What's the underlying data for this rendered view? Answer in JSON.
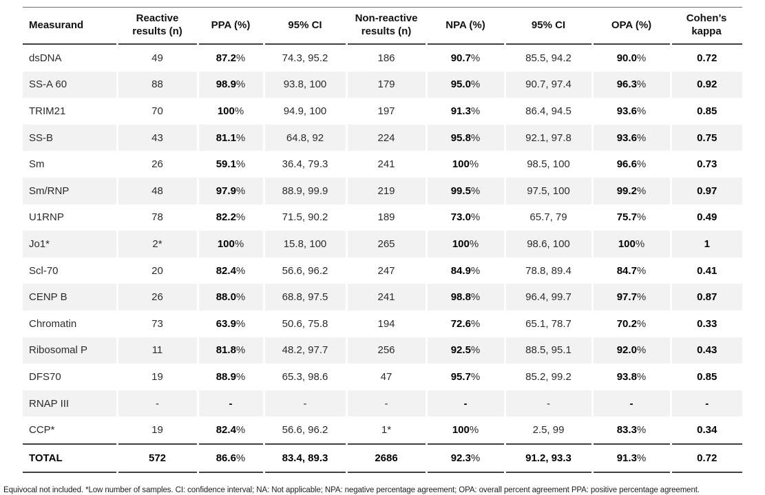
{
  "table": {
    "columns": [
      "Measurand",
      "Reactive results (n)",
      "PPA (%)",
      "95% CI",
      "Non-reactive results (n)",
      "NPA (%)",
      "95% CI",
      "OPA (%)",
      "Cohen’s kappa"
    ],
    "rows": [
      [
        "dsDNA",
        "49",
        "87.2%",
        "74.3, 95.2",
        "186",
        "90.7%",
        "85.5, 94.2",
        "90.0%",
        "0.72"
      ],
      [
        "SS-A 60",
        "88",
        "98.9%",
        "93.8, 100",
        "179",
        "95.0%",
        "90.7, 97.4",
        "96.3%",
        "0.92"
      ],
      [
        "TRIM21",
        "70",
        "100%",
        "94.9, 100",
        "197",
        "91.3%",
        "86.4, 94.5",
        "93.6%",
        "0.85"
      ],
      [
        "SS-B",
        "43",
        "81.1%",
        "64.8, 92",
        "224",
        "95.8%",
        "92.1, 97.8",
        "93.6%",
        "0.75"
      ],
      [
        "Sm",
        "26",
        "59.1%",
        "36.4, 79.3",
        "241",
        "100%",
        "98.5, 100",
        "96.6%",
        "0.73"
      ],
      [
        "Sm/RNP",
        "48",
        "97.9%",
        "88.9, 99.9",
        "219",
        "99.5%",
        "97.5, 100",
        "99.2%",
        "0.97"
      ],
      [
        "U1RNP",
        "78",
        "82.2%",
        "71.5, 90.2",
        "189",
        "73.0%",
        "65.7, 79",
        "75.7%",
        "0.49"
      ],
      [
        "Jo1*",
        "2*",
        "100%",
        "15.8, 100",
        "265",
        "100%",
        "98.6, 100",
        "100%",
        "1"
      ],
      [
        "Scl-70",
        "20",
        "82.4%",
        "56.6, 96.2",
        "247",
        "84.9%",
        "78.8, 89.4",
        "84.7%",
        "0.41"
      ],
      [
        "CENP B",
        "26",
        "88.0%",
        "68.8, 97.5",
        "241",
        "98.8%",
        "96.4, 99.7",
        "97.7%",
        "0.87"
      ],
      [
        "Chromatin",
        "73",
        "63.9%",
        "50.6, 75.8",
        "194",
        "72.6%",
        "65.1, 78.7",
        "70.2%",
        "0.33"
      ],
      [
        "Ribosomal P",
        "11",
        "81.8%",
        "48.2, 97.7",
        "256",
        "92.5%",
        "88.5, 95.1",
        "92.0%",
        "0.43"
      ],
      [
        "DFS70",
        "19",
        "88.9%",
        "65.3, 98.6",
        "47",
        "95.7%",
        "85.2, 99.2",
        "93.8%",
        "0.85"
      ],
      [
        "RNAP III",
        "-",
        "-",
        "-",
        "-",
        "-",
        "-",
        "-",
        "-"
      ],
      [
        "CCP*",
        "19",
        "82.4%",
        "56.6, 96.2",
        "1*",
        "100%",
        "2.5, 99",
        "83.3%",
        "0.34"
      ]
    ],
    "total": [
      "TOTAL",
      "572",
      "86.6%",
      "83.4, 89.3",
      "2686",
      "92.3%",
      "91.2, 93.3",
      "91.3%",
      "0.72"
    ],
    "footnote": "Equivocal not included. *Low number of samples. CI: confidence interval; NA: Not applicable; NPA: negative percentage agreement; OPA: overall percent agreement PPA: positive percentage agreement."
  }
}
